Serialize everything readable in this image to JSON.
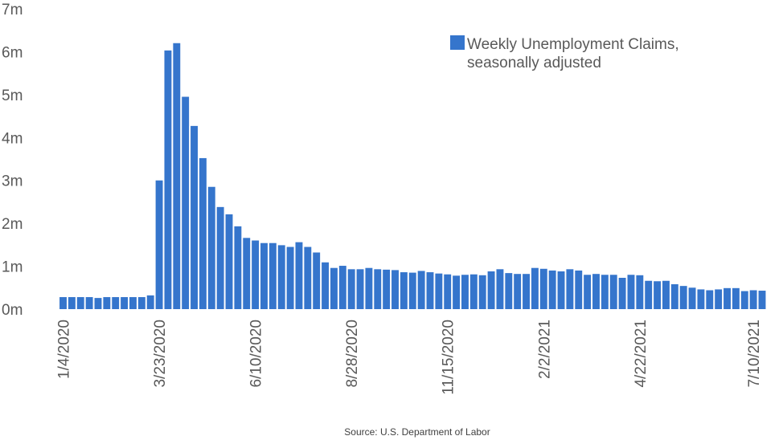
{
  "chart_data": {
    "type": "bar",
    "title": "",
    "xlabel": "",
    "ylabel": "",
    "ylim": [
      0,
      7000000
    ],
    "yticks": [
      {
        "value": 0,
        "label": "0m"
      },
      {
        "value": 1000000,
        "label": "1m"
      },
      {
        "value": 2000000,
        "label": "2m"
      },
      {
        "value": 3000000,
        "label": "3m"
      },
      {
        "value": 4000000,
        "label": "4m"
      },
      {
        "value": 5000000,
        "label": "5m"
      },
      {
        "value": 6000000,
        "label": "6m"
      },
      {
        "value": 7000000,
        "label": "7m"
      }
    ],
    "xticks": [
      {
        "index": 0,
        "label": "1/4/2020"
      },
      {
        "index": 11,
        "label": "3/23/2020"
      },
      {
        "index": 22,
        "label": "6/10/2020"
      },
      {
        "index": 33,
        "label": "8/28/2020"
      },
      {
        "index": 44,
        "label": "11/15/2020"
      },
      {
        "index": 55,
        "label": "2/2/2021"
      },
      {
        "index": 66,
        "label": "4/22/2021"
      },
      {
        "index": 79,
        "label": "7/10/2021"
      }
    ],
    "series": [
      {
        "name": "Weekly Unemployment Claims, seasonally adjusted",
        "color": "#3575CC",
        "start_date": "1/4/2020",
        "interval": "weekly",
        "values": [
          280000,
          280000,
          280000,
          280000,
          260000,
          280000,
          280000,
          280000,
          280000,
          280000,
          320000,
          3000000,
          6030000,
          6200000,
          4950000,
          4270000,
          3520000,
          2850000,
          2380000,
          2210000,
          1930000,
          1660000,
          1600000,
          1540000,
          1540000,
          1490000,
          1450000,
          1560000,
          1450000,
          1320000,
          1090000,
          960000,
          1010000,
          930000,
          930000,
          960000,
          930000,
          920000,
          910000,
          860000,
          850000,
          890000,
          860000,
          830000,
          810000,
          780000,
          800000,
          810000,
          790000,
          880000,
          930000,
          840000,
          820000,
          820000,
          960000,
          940000,
          900000,
          880000,
          930000,
          900000,
          800000,
          820000,
          800000,
          800000,
          730000,
          800000,
          790000,
          660000,
          650000,
          660000,
          580000,
          540000,
          500000,
          460000,
          440000,
          460000,
          490000,
          490000,
          420000,
          440000,
          430000
        ]
      }
    ],
    "legend": {
      "position": "top-right",
      "line1": "Weekly Unemployment Claims,",
      "line2": "seasonally adjusted"
    },
    "source": "Source: U.S. Department of Labor",
    "grid": false
  }
}
